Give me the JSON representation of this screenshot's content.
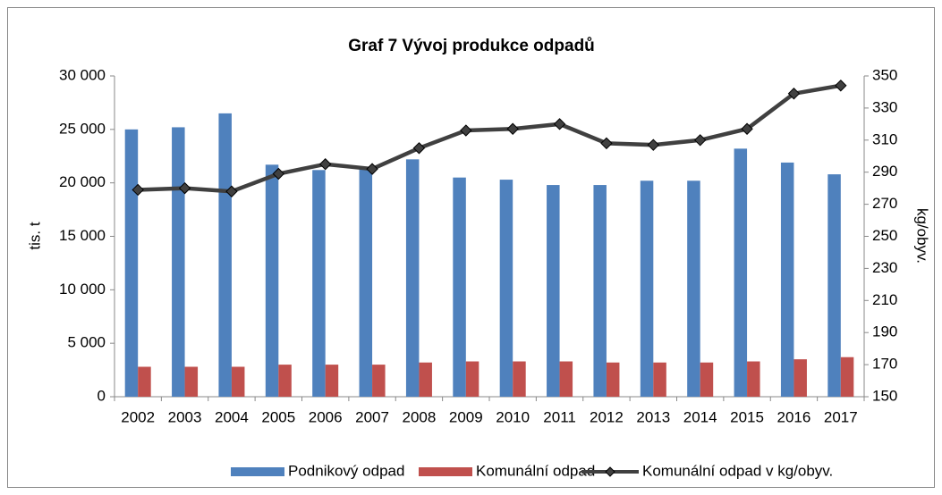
{
  "chart_data": {
    "type": "bar",
    "title": "Graf 7 Vývoj produkce odpadů",
    "y_label": "tis. t",
    "y2_label": "kg/obyv.",
    "categories": [
      "2002",
      "2003",
      "2004",
      "2005",
      "2006",
      "2007",
      "2008",
      "2009",
      "2010",
      "2011",
      "2012",
      "2013",
      "2014",
      "2015",
      "2016",
      "2017"
    ],
    "series": [
      {
        "name": "Podnikový odpad",
        "type": "bar",
        "color": "#4f81bd",
        "values": [
          25000,
          25200,
          26500,
          21700,
          21200,
          21500,
          22200,
          20500,
          20300,
          19800,
          19800,
          20200,
          20200,
          23200,
          21900,
          20800
        ]
      },
      {
        "name": "Komunální odpad",
        "type": "bar",
        "color": "#c0504d",
        "values": [
          2800,
          2800,
          2800,
          3000,
          3000,
          3000,
          3200,
          3300,
          3300,
          3300,
          3200,
          3200,
          3200,
          3300,
          3500,
          3700
        ]
      },
      {
        "name": "Komunální odpad v kg/obyv.",
        "type": "line",
        "axis": "y2",
        "color": "#404040",
        "values": [
          279,
          280,
          278,
          289,
          295,
          292,
          305,
          316,
          317,
          320,
          308,
          307,
          310,
          317,
          339,
          344
        ]
      }
    ],
    "ylim": [
      0,
      30000
    ],
    "yticks": [
      0,
      {
        "value": 5000,
        "label": "5 000"
      },
      {
        "value": 10000,
        "label": "10 000"
      },
      {
        "value": 15000,
        "label": "15 000"
      },
      {
        "value": 20000,
        "label": "20 000"
      },
      {
        "value": 25000,
        "label": "25 000"
      },
      {
        "value": 30000,
        "label": "30 000"
      }
    ],
    "y2lim": [
      150,
      350
    ],
    "y2ticks": [
      150,
      170,
      190,
      210,
      230,
      250,
      270,
      290,
      310,
      330,
      350
    ],
    "legend": "bottom",
    "grid": false
  }
}
